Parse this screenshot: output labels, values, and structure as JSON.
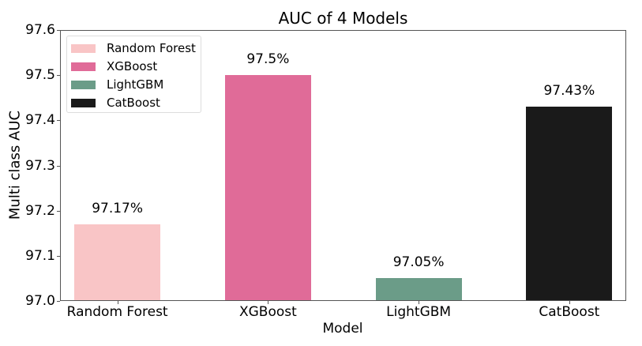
{
  "chart_data": {
    "type": "bar",
    "title": "AUC of 4 Models",
    "xlabel": "Model",
    "ylabel": "Multi class AUC",
    "categories": [
      "Random Forest",
      "XGBoost",
      "LightGBM",
      "CatBoost"
    ],
    "values": [
      97.17,
      97.5,
      97.05,
      97.43
    ],
    "value_labels": [
      "97.17%",
      "97.5%",
      "97.05%",
      "97.43%"
    ],
    "colors": [
      "#f9c5c6",
      "#e06b98",
      "#6b9c88",
      "#1a1a1a"
    ],
    "ylim": [
      97.0,
      97.6
    ],
    "yticks": [
      "97.0",
      "97.1",
      "97.2",
      "97.3",
      "97.4",
      "97.5",
      "97.6"
    ],
    "grid": false,
    "legend": {
      "position": "upper left",
      "entries": [
        "Random Forest",
        "XGBoost",
        "LightGBM",
        "CatBoost"
      ]
    }
  }
}
